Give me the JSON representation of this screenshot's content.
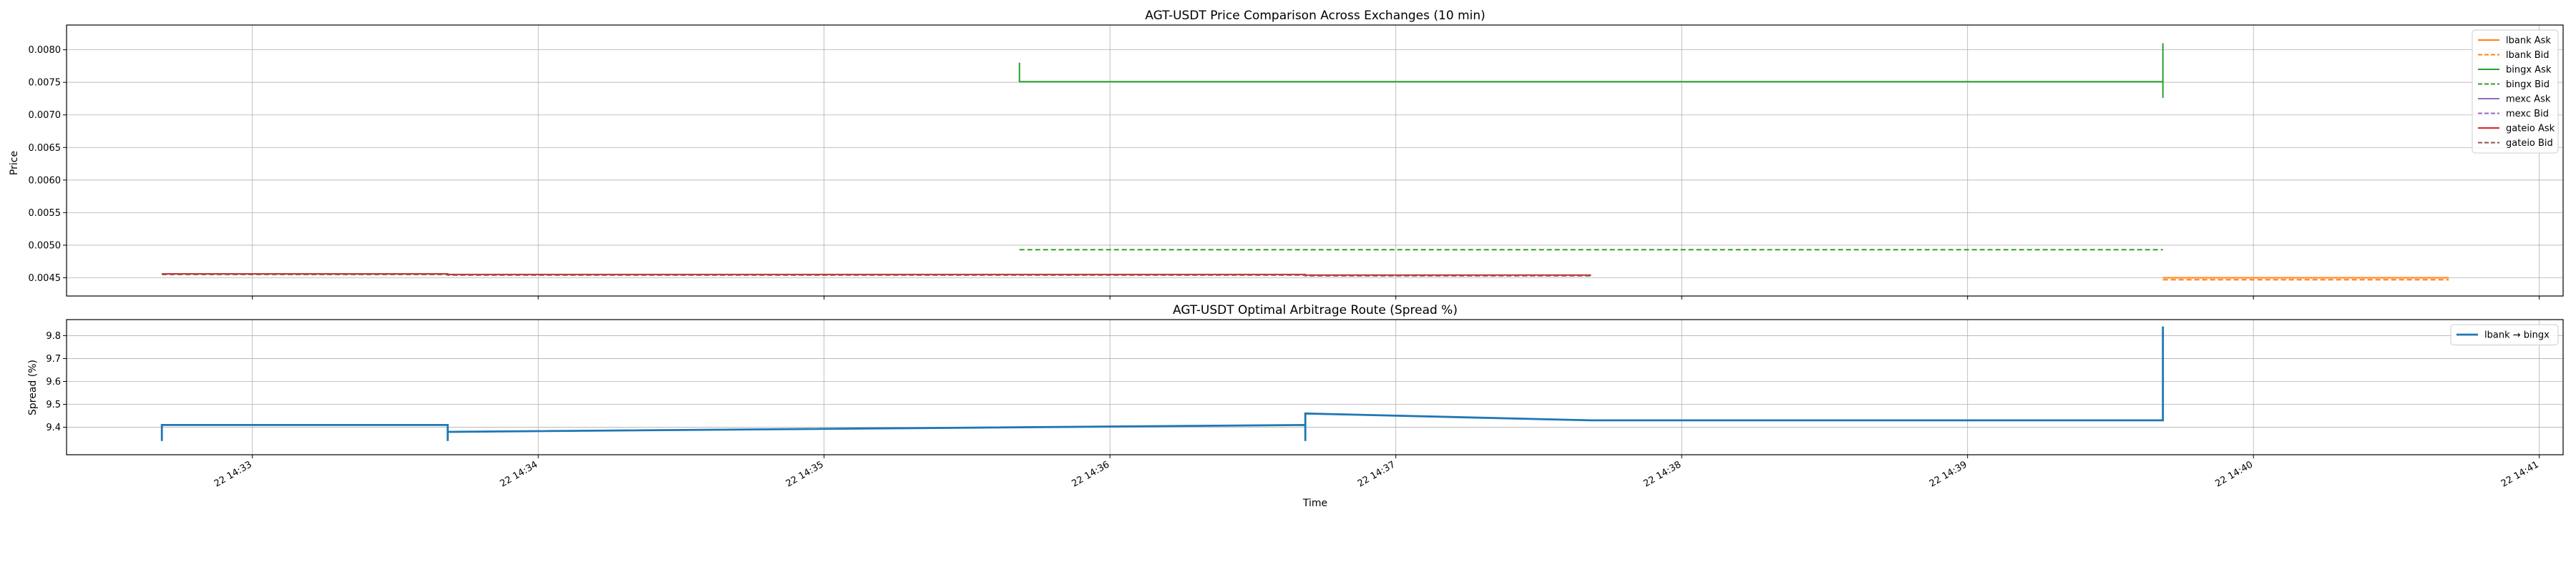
{
  "chart_data": [
    {
      "type": "line",
      "title": "AGT-USDT Price Comparison Across Exchanges (10 min)",
      "xlabel": "",
      "ylabel": "Price",
      "ylim": [
        0.00422,
        0.00838
      ],
      "xlim": [
        "14:32:21",
        "14:41:05"
      ],
      "y_ticks": [
        "0.0045",
        "0.0050",
        "0.0055",
        "0.0060",
        "0.0065",
        "0.0070",
        "0.0075",
        "0.0080"
      ],
      "grid": true,
      "legend": "upper right",
      "series": [
        {
          "name": "lbank Ask",
          "color": "#ff7f0e",
          "style": "solid",
          "x": [
            "14:39:41",
            "14:40:41"
          ],
          "y": [
            0.0045,
            0.0045
          ]
        },
        {
          "name": "lbank Bid",
          "color": "#ff7f0e",
          "style": "dashed",
          "x": [
            "14:39:41",
            "14:40:41"
          ],
          "y": [
            0.00447,
            0.00447
          ]
        },
        {
          "name": "bingx Ask",
          "color": "#2ca02c",
          "style": "solid",
          "x": [
            "14:35:41",
            "14:35:41",
            "14:35:41",
            "14:39:41",
            "14:39:41",
            "14:39:41",
            "14:39:41"
          ],
          "y": [
            0.0078,
            0.00751,
            0.00751,
            0.00751,
            0.0081,
            0.00726,
            0.00751
          ]
        },
        {
          "name": "bingx Bid",
          "color": "#2ca02c",
          "style": "dashed",
          "x": [
            "14:35:41",
            "14:39:41"
          ],
          "y": [
            0.00493,
            0.00493
          ]
        },
        {
          "name": "mexc Ask",
          "color": "#9467bd",
          "style": "solid",
          "x": [],
          "y": []
        },
        {
          "name": "mexc Bid",
          "color": "#9467bd",
          "style": "dashed",
          "x": [],
          "y": []
        },
        {
          "name": "gateio Ask",
          "color": "#d62728",
          "style": "solid",
          "x": [
            "14:32:41",
            "14:33:41",
            "14:33:41",
            "14:36:41",
            "14:36:41",
            "14:37:41"
          ],
          "y": [
            0.00456,
            0.00456,
            0.00455,
            0.00455,
            0.00454,
            0.00454
          ]
        },
        {
          "name": "gateio Bid",
          "color": "#8c564b",
          "style": "dashed",
          "x": [
            "14:32:41",
            "14:33:41",
            "14:33:41",
            "14:36:41",
            "14:36:41",
            "14:37:41"
          ],
          "y": [
            0.00455,
            0.00455,
            0.00454,
            0.00454,
            0.00453,
            0.00453
          ]
        }
      ]
    },
    {
      "type": "line",
      "title": "AGT-USDT Optimal Arbitrage Route (Spread %)",
      "xlabel": "Time",
      "ylabel": "Spread (%)",
      "ylim": [
        9.28,
        9.87
      ],
      "xlim": [
        "14:32:21",
        "14:41:05"
      ],
      "y_ticks": [
        "9.4",
        "9.5",
        "9.6",
        "9.7",
        "9.8"
      ],
      "x_ticks": [
        "22 14:33",
        "22 14:34",
        "22 14:35",
        "22 14:36",
        "22 14:37",
        "22 14:38",
        "22 14:39",
        "22 14:40",
        "22 14:41"
      ],
      "grid": true,
      "legend": "upper right",
      "series": [
        {
          "name": "lbank → bingx",
          "color": "#1f77b4",
          "style": "solid",
          "x": [
            "14:32:41",
            "14:32:41",
            "14:33:41",
            "14:33:41",
            "14:33:41",
            "14:36:41",
            "14:36:41",
            "14:36:41",
            "14:37:41",
            "14:39:41",
            "14:39:41"
          ],
          "y": [
            9.34,
            9.41,
            9.41,
            9.34,
            9.38,
            9.41,
            9.34,
            9.46,
            9.43,
            9.43,
            9.84
          ]
        }
      ]
    }
  ]
}
